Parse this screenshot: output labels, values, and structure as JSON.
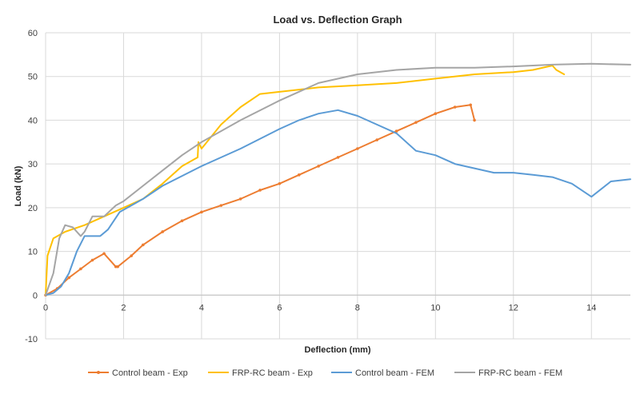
{
  "chart_data": {
    "type": "line",
    "title": "Load vs. Deflection Graph",
    "xlabel": "Deflection (mm)",
    "ylabel": "Load (kN)",
    "xlim": [
      0,
      15
    ],
    "ylim": [
      -10,
      60
    ],
    "xticks": [
      "0",
      "2",
      "4",
      "6",
      "8",
      "10",
      "12",
      "14"
    ],
    "yticks": [
      "-10",
      "0",
      "10",
      "20",
      "30",
      "40",
      "50",
      "60"
    ],
    "grid": true,
    "legend_position": "bottom",
    "series": [
      {
        "name": "Control beam - Exp",
        "color": "#ED7D31",
        "marker": true,
        "x": [
          0,
          0.3,
          0.6,
          0.9,
          1.2,
          1.5,
          1.8,
          1.85,
          2.2,
          2.5,
          3.0,
          3.5,
          4.0,
          4.5,
          5.0,
          5.5,
          6.0,
          6.5,
          7.0,
          7.5,
          8.0,
          8.5,
          9.0,
          9.5,
          10.0,
          10.5,
          10.9,
          11.0
        ],
        "y": [
          0,
          1.5,
          4,
          6,
          8,
          9.5,
          6.5,
          6.5,
          9,
          11.5,
          14.5,
          17,
          19,
          20.5,
          22,
          24,
          25.5,
          27.5,
          29.5,
          31.5,
          33.5,
          35.5,
          37.5,
          39.5,
          41.5,
          43,
          43.5,
          40
        ]
      },
      {
        "name": "FRP-RC beam - Exp",
        "color": "#FFC000",
        "marker": false,
        "x": [
          0,
          0.05,
          0.2,
          0.5,
          1.0,
          1.5,
          2.0,
          2.5,
          3.0,
          3.5,
          3.9,
          3.92,
          4.0,
          4.5,
          5.0,
          5.5,
          6.0,
          7.0,
          8.0,
          9.0,
          10.0,
          11.0,
          12.0,
          12.5,
          13.0,
          13.1,
          13.3
        ],
        "y": [
          0,
          9,
          13,
          14.5,
          16,
          18,
          20,
          22,
          25.5,
          29.5,
          31.5,
          35,
          33.5,
          39,
          43,
          46,
          46.5,
          47.5,
          48,
          48.5,
          49.5,
          50.5,
          51,
          51.5,
          52.5,
          51.5,
          50.5
        ]
      },
      {
        "name": "Control beam - FEM",
        "color": "#5B9BD5",
        "marker": false,
        "x": [
          0,
          0.2,
          0.4,
          0.6,
          0.8,
          1.0,
          1.2,
          1.4,
          1.6,
          1.9,
          2.5,
          3.0,
          4.0,
          5.0,
          6.0,
          6.5,
          7.0,
          7.5,
          8.0,
          8.5,
          9.0,
          9.5,
          10.0,
          10.5,
          11.0,
          11.5,
          12.0,
          12.5,
          13.0,
          13.5,
          14.0,
          14.5,
          15.0
        ],
        "y": [
          0,
          0.5,
          2,
          5,
          10,
          13.5,
          13.5,
          13.5,
          15,
          19,
          22,
          25,
          29.5,
          33.5,
          38,
          40,
          41.5,
          42.3,
          41,
          39,
          37,
          33,
          32,
          30,
          29,
          28,
          28,
          27.5,
          27,
          25.5,
          22.5,
          26,
          26.5
        ]
      },
      {
        "name": "FRP-RC beam - FEM",
        "color": "#A5A5A5",
        "marker": false,
        "x": [
          0,
          0.2,
          0.35,
          0.5,
          0.7,
          0.9,
          1.0,
          1.2,
          1.5,
          1.8,
          2.0,
          2.5,
          3.0,
          3.5,
          4.0,
          5.0,
          6.0,
          7.0,
          8.0,
          9.0,
          10.0,
          11.0,
          12.0,
          13.0,
          14.0,
          15.0
        ],
        "y": [
          0,
          5,
          13,
          16,
          15.5,
          13.5,
          14.5,
          18,
          18,
          20.5,
          21.5,
          25,
          28.5,
          32,
          35,
          40,
          44.5,
          48.5,
          50.5,
          51.5,
          52,
          52,
          52.3,
          52.7,
          52.9,
          52.7
        ]
      }
    ]
  }
}
